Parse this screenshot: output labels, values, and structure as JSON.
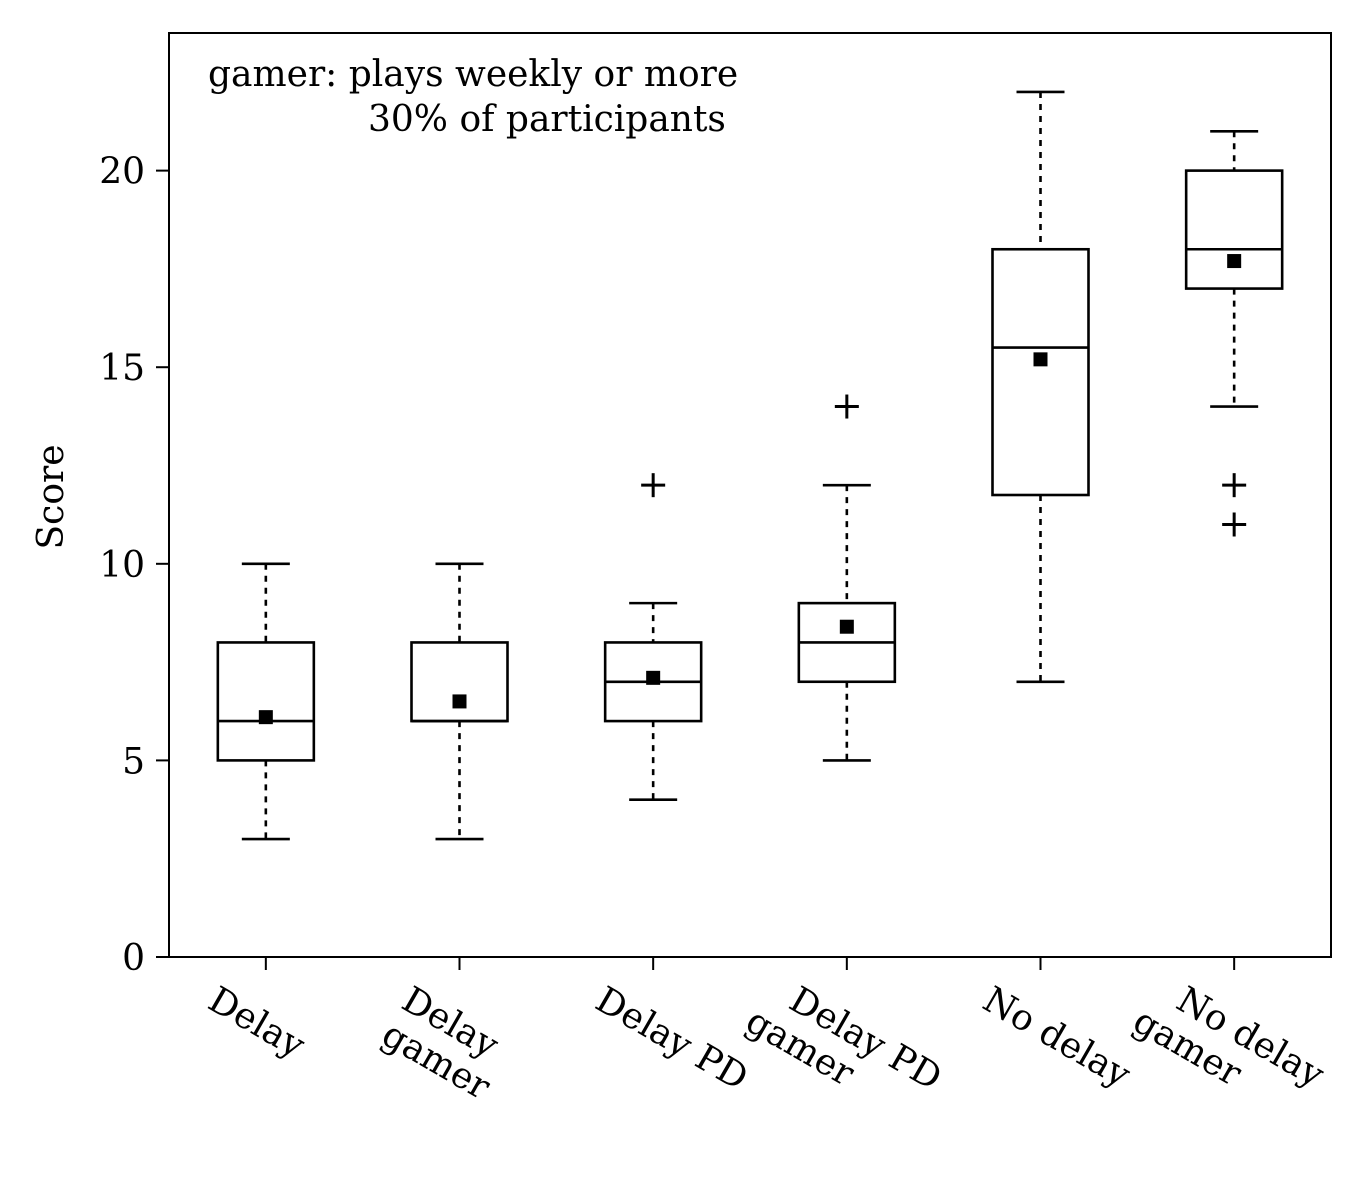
{
  "chart_data": {
    "type": "box",
    "ylabel": "Score",
    "ylim": [
      0,
      23.5
    ],
    "yticks": [
      0,
      5,
      10,
      15,
      20
    ],
    "annotation": [
      "gamer: plays weekly or more",
      "30% of participants"
    ],
    "categories": [
      [
        "Delay"
      ],
      [
        "Delay",
        "gamer"
      ],
      [
        "Delay PD"
      ],
      [
        "Delay PD",
        "gamer"
      ],
      [
        "No delay"
      ],
      [
        "No delay",
        "gamer"
      ]
    ],
    "boxes": [
      {
        "whisker_low": 3,
        "q1": 5,
        "median": 6,
        "q3": 8,
        "whisker_high": 10,
        "mean": 6.1,
        "outliers": []
      },
      {
        "whisker_low": 3,
        "q1": 6,
        "median": 6,
        "q3": 8,
        "whisker_high": 10,
        "mean": 6.5,
        "outliers": []
      },
      {
        "whisker_low": 4,
        "q1": 6,
        "median": 7,
        "q3": 8,
        "whisker_high": 9,
        "mean": 7.1,
        "outliers": [
          12
        ]
      },
      {
        "whisker_low": 5,
        "q1": 7,
        "median": 8,
        "q3": 9,
        "whisker_high": 12,
        "mean": 8.4,
        "outliers": [
          14
        ]
      },
      {
        "whisker_low": 7,
        "q1": 11.75,
        "median": 15.5,
        "q3": 18,
        "whisker_high": 22,
        "mean": 15.2,
        "outliers": []
      },
      {
        "whisker_low": 14,
        "q1": 17,
        "median": 18,
        "q3": 20,
        "whisker_high": 21,
        "mean": 17.7,
        "outliers": [
          12,
          11
        ]
      }
    ],
    "grid": false,
    "colors": {
      "line": "#000000",
      "mean_marker": "#000000",
      "background": "#ffffff"
    }
  }
}
